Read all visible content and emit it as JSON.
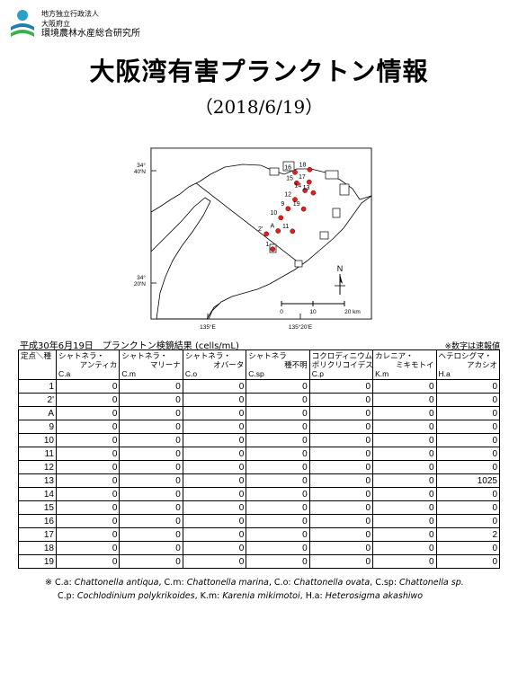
{
  "org": {
    "line1": "地方独立行政法人",
    "line2": "大阪府立",
    "line3": "環境農林水産総合研究所"
  },
  "title": "大阪湾有害プランクトン情報",
  "date": "（2018/6/19）",
  "map": {
    "lat_top": "34°",
    "lat_top2": "40'N",
    "lat_bottom": "34°",
    "lat_bottom2": "20'N",
    "lon_left": "135°E",
    "lon_right": "135°20'E",
    "scale_0": "0",
    "scale_10": "10",
    "scale_20": "20 km",
    "north": "N",
    "stations": [
      {
        "label": "16",
        "lon": 135.314,
        "lat": 34.662
      },
      {
        "label": "18",
        "lon": 135.367,
        "lat": 34.67
      },
      {
        "label": "15",
        "lon": 135.32,
        "lat": 34.63
      },
      {
        "label": "17",
        "lon": 135.365,
        "lat": 34.633
      },
      {
        "label": "14",
        "lon": 135.35,
        "lat": 34.608
      },
      {
        "label": "13",
        "lon": 135.38,
        "lat": 34.601
      },
      {
        "label": "12",
        "lon": 135.314,
        "lat": 34.581
      },
      {
        "label": "19",
        "lon": 135.345,
        "lat": 34.553
      },
      {
        "label": "9",
        "lon": 135.289,
        "lat": 34.554
      },
      {
        "label": "10",
        "lon": 135.263,
        "lat": 34.527
      },
      {
        "label": "11",
        "lon": 135.305,
        "lat": 34.487
      },
      {
        "label": "A",
        "lon": 135.253,
        "lat": 34.488
      },
      {
        "label": "2'",
        "lon": 135.211,
        "lat": 34.479
      },
      {
        "label": "1",
        "lon": 135.234,
        "lat": 34.434
      }
    ]
  },
  "caption": "平成30年6月19日　プランクトン検鏡結果 (cells/mL)",
  "note": "※数字は速報値",
  "table": {
    "corner": "定点＼種",
    "headers": [
      {
        "l1": "シャトネラ・",
        "l2": "アンティカ",
        "abbr": "C.a"
      },
      {
        "l1": "シャトネラ・",
        "l2": "マリーナ",
        "abbr": "C.m"
      },
      {
        "l1": "シャトネラ・",
        "l2": "オバータ",
        "abbr": "C.o"
      },
      {
        "l1": "シャトネラ",
        "l2": "種不明",
        "abbr": "C.sp"
      },
      {
        "l1": "コクロディニウム・",
        "l2": "ポリクリコイデス",
        "abbr": "C.p"
      },
      {
        "l1": "カレニア・",
        "l2": "ミキモトイ",
        "abbr": "K.m"
      },
      {
        "l1": "ヘテロシグマ・",
        "l2": "アカシオ",
        "abbr": "H.a"
      }
    ],
    "rows": [
      {
        "station": "1",
        "v": [
          "0",
          "0",
          "0",
          "0",
          "0",
          "0",
          "0"
        ]
      },
      {
        "station": "2'",
        "v": [
          "0",
          "0",
          "0",
          "0",
          "0",
          "0",
          "0"
        ]
      },
      {
        "station": "A",
        "v": [
          "0",
          "0",
          "0",
          "0",
          "0",
          "0",
          "0"
        ]
      },
      {
        "station": "9",
        "v": [
          "0",
          "0",
          "0",
          "0",
          "0",
          "0",
          "0"
        ]
      },
      {
        "station": "10",
        "v": [
          "0",
          "0",
          "0",
          "0",
          "0",
          "0",
          "0"
        ]
      },
      {
        "station": "11",
        "v": [
          "0",
          "0",
          "0",
          "0",
          "0",
          "0",
          "0"
        ]
      },
      {
        "station": "12",
        "v": [
          "0",
          "0",
          "0",
          "0",
          "0",
          "0",
          "0"
        ]
      },
      {
        "station": "13",
        "v": [
          "0",
          "0",
          "0",
          "0",
          "0",
          "0",
          "1025"
        ]
      },
      {
        "station": "14",
        "v": [
          "0",
          "0",
          "0",
          "0",
          "0",
          "0",
          "0"
        ]
      },
      {
        "station": "15",
        "v": [
          "0",
          "0",
          "0",
          "0",
          "0",
          "0",
          "0"
        ]
      },
      {
        "station": "16",
        "v": [
          "0",
          "0",
          "0",
          "0",
          "0",
          "0",
          "0"
        ]
      },
      {
        "station": "17",
        "v": [
          "0",
          "0",
          "0",
          "0",
          "0",
          "0",
          "2"
        ]
      },
      {
        "station": "18",
        "v": [
          "0",
          "0",
          "0",
          "0",
          "0",
          "0",
          "0"
        ]
      },
      {
        "station": "19",
        "v": [
          "0",
          "0",
          "0",
          "0",
          "0",
          "0",
          "0"
        ]
      }
    ]
  },
  "footnote": {
    "mark": "※",
    "items1": [
      {
        "abbr": "C.a:",
        "name": "Chattonella antiqua"
      },
      {
        "abbr": "C.m:",
        "name": "Chattonella marina"
      },
      {
        "abbr": "C.o:",
        "name": "Chattonella ovata"
      },
      {
        "abbr": "C.sp:",
        "name": "Chattonella sp."
      }
    ],
    "items2": [
      {
        "abbr": "C.p:",
        "name": "Cochlodinium polykrikoides"
      },
      {
        "abbr": "K.m:",
        "name": "Karenia mikimotoi"
      },
      {
        "abbr": "H.a:",
        "name": "Heterosigma akashiwo"
      }
    ]
  },
  "colors": {
    "station_dot": "#e02020",
    "land": "#ffffff",
    "sea": "#ffffff"
  }
}
